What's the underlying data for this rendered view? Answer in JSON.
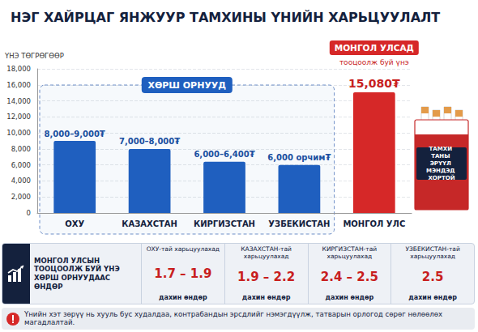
{
  "chart_data": {
    "type": "bar",
    "title": "НЭГ ХАЙРЦАГ ЯНЖУУР ТАМХИНЫ ҮНИЙН ХАРЬЦУУЛАЛТ",
    "y_label": "ҮНЭ ТӨГРӨГӨӨР",
    "categories": [
      "ОХУ",
      "КАЗАХСТАН",
      "КИРГИЗСТАН",
      "УЗБЕКИСТАН",
      "МОНГОЛ УЛС"
    ],
    "values": [
      9000,
      8000,
      6400,
      6000,
      15080
    ],
    "value_labels": [
      "8,000–9,000₮",
      "7,000–8,000₮",
      "6,000–6,400₮",
      "6,000 орчим₮",
      "15,080₮"
    ],
    "colors": [
      "#1f5fbf",
      "#1f5fbf",
      "#1f5fbf",
      "#1f5fbf",
      "#d62828"
    ],
    "ylim": [
      0,
      18000
    ],
    "yticks": [
      0,
      {
        "value": 2000,
        "label": "2,000"
      },
      {
        "value": 4000,
        "label": "4,000"
      },
      {
        "value": 6000,
        "label": "6,000"
      },
      {
        "value": 8000,
        "label": "8,000"
      },
      {
        "value": 10000,
        "label": "10,000"
      },
      {
        "value": 12000,
        "label": "12,000"
      },
      {
        "value": 14000,
        "label": "14,000"
      },
      {
        "value": 16000,
        "label": "16,000"
      },
      {
        "value": 18000,
        "label": "18,000"
      }
    ],
    "grid": true,
    "data_labels": true,
    "annotations": {
      "group_label": "ХӨРШ ОРНУУД",
      "highlight_label": "МОНГОЛ УЛСАД",
      "highlight_sub": "тооцоолж буй үнэ",
      "pack_text": "ТАМХИ ТАНЫ ЭРҮҮЛ МЭНДЭД ХОРТОЙ"
    }
  },
  "comparison": {
    "heading": "МОНГОЛ УЛСЫН ТООЦООЛЖ БУЙ ҮНЭ ХӨРШ ОРНУУДААС ӨНДӨР",
    "items": [
      {
        "label": "ОХУ-тай харьцуулахад",
        "ratio": "1.7 – 1.9",
        "note": "дахин өндөр"
      },
      {
        "label": "КАЗАХСТАН-тай харьцуулахад",
        "ratio": "1.9 – 2.2",
        "note": "дахин өндөр"
      },
      {
        "label": "КИРГИЗСТАН-тай харьцуулахад",
        "ratio": "2.4 – 2.5",
        "note": "дахин өндөр"
      },
      {
        "label": "УЗБЕКИСТАН-тай харьцуулахад",
        "ratio": "2.5",
        "note": "дахин өндөр"
      }
    ]
  },
  "warning": "Үнийн хэт зөрүү нь хууль бус худалдаа, контрабандын эрсдлийг нэмэгдүүлж, татварын орлогод сөрөг нөлөөлөх магадлалтай."
}
